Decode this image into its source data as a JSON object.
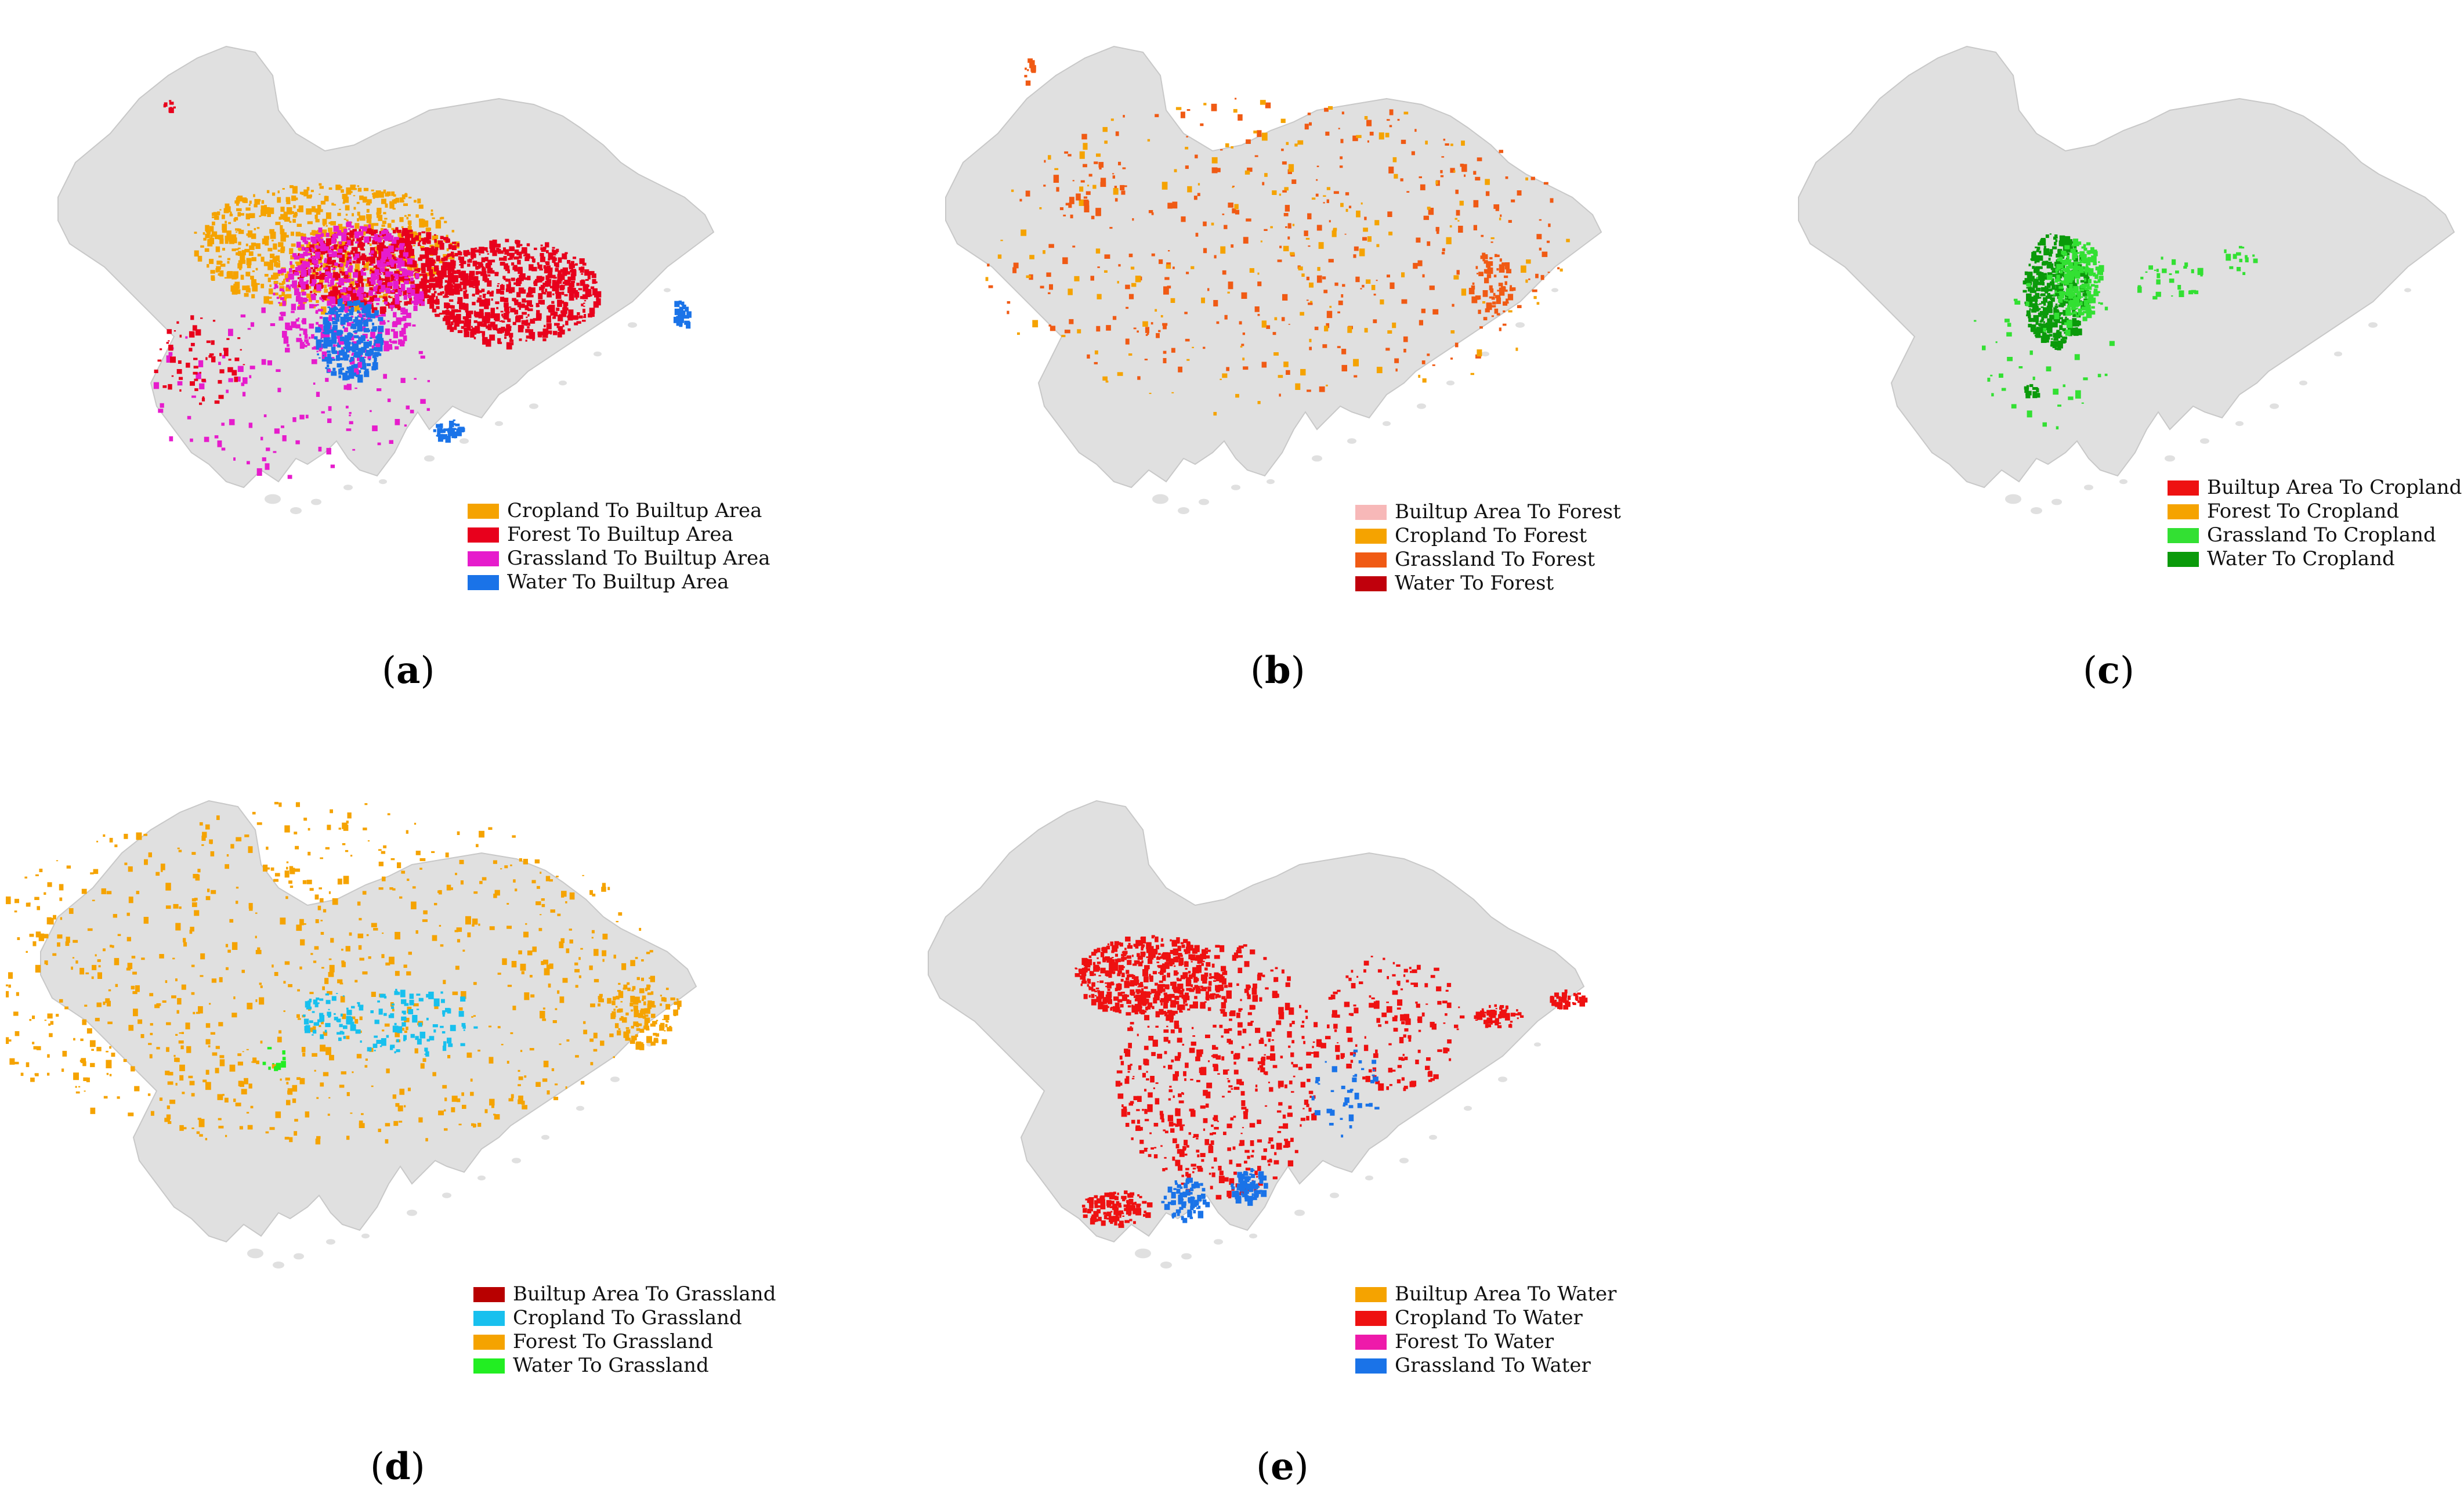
{
  "land_color": "#e0e0e0",
  "panels": [
    {
      "caption": "a",
      "legend": [
        {
          "label": "Cropland To Builtup Area",
          "color": "#f5a300"
        },
        {
          "label": "Forest To Builtup Area",
          "color": "#e8001c"
        },
        {
          "label": "Grassland To Builtup Area",
          "color": "#e61ccc"
        },
        {
          "label": "Water To Builtup Area",
          "color": "#1a73e8"
        }
      ]
    },
    {
      "caption": "b",
      "legend": [
        {
          "label": "Builtup Area To Forest",
          "color": "#f7b8b8"
        },
        {
          "label": "Cropland To Forest",
          "color": "#f5a300"
        },
        {
          "label": "Grassland To Forest",
          "color": "#f05a14"
        },
        {
          "label": "Water To Forest",
          "color": "#c0000c"
        }
      ]
    },
    {
      "caption": "c",
      "legend": [
        {
          "label": "Builtup Area To Cropland",
          "color": "#ee1111"
        },
        {
          "label": "Forest To Cropland",
          "color": "#f5a300"
        },
        {
          "label": "Grassland To Cropland",
          "color": "#33e033"
        },
        {
          "label": "Water To Cropland",
          "color": "#0a9a0a"
        }
      ]
    },
    {
      "caption": "d",
      "legend": [
        {
          "label": "Builtup Area To Grassland",
          "color": "#b80000"
        },
        {
          "label": "Cropland To Grassland",
          "color": "#18c0ee"
        },
        {
          "label": "Forest To Grassland",
          "color": "#f5a300"
        },
        {
          "label": "Water To Grassland",
          "color": "#22ee22"
        }
      ]
    },
    {
      "caption": "e",
      "legend": [
        {
          "label": "Builtup Area To Water",
          "color": "#f5a300"
        },
        {
          "label": "Cropland To Water",
          "color": "#ee1111"
        },
        {
          "label": "Forest To Water",
          "color": "#ee1aaa"
        },
        {
          "label": "Grassland To Water",
          "color": "#1a73e8"
        }
      ]
    }
  ]
}
